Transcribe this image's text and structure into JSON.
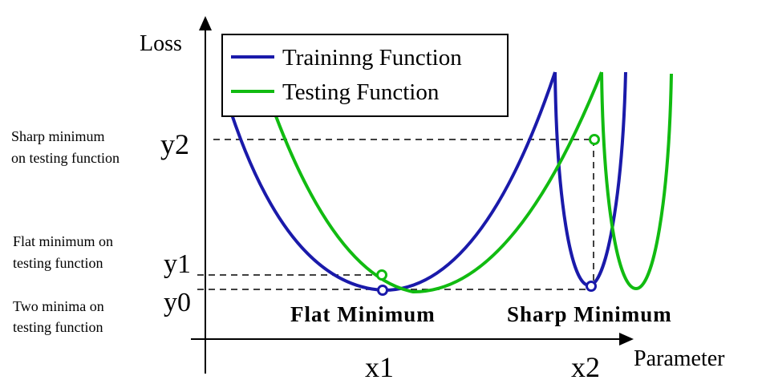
{
  "axes": {
    "y_label": "Loss",
    "x_label": "Parameter",
    "x_ticks": {
      "x1": "x1",
      "x2": "x2"
    },
    "y_ticks": {
      "y0": "y0",
      "y1": "y1",
      "y2": "y2"
    }
  },
  "legend": {
    "placement": "top-left",
    "items": [
      {
        "label": "Traininng Function",
        "color": "#1a1aaa"
      },
      {
        "label": "Testing Function",
        "color": "#11bb11"
      }
    ]
  },
  "side_notes": {
    "sharp": [
      "Sharp minimum",
      "on testing function"
    ],
    "flat": [
      "Flat minimum on",
      "testing function"
    ],
    "two": [
      "Two minima on",
      "testing function"
    ]
  },
  "captions": {
    "flat": "Flat Minimum",
    "sharp": "Sharp Minimum"
  },
  "colors": {
    "training": "#1a1aaa",
    "testing": "#11bb11",
    "axis": "#000000"
  }
}
